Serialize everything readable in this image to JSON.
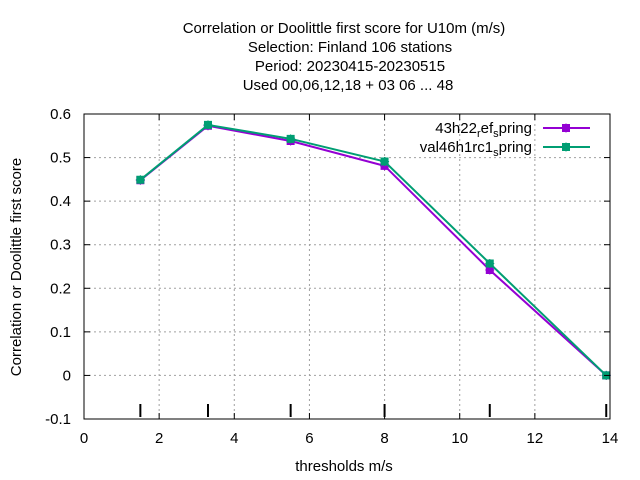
{
  "chart_data": {
    "type": "line",
    "title_lines": [
      "Correlation or Doolittle first score  for U10m (m/s)",
      "Selection: Finland     106 stations",
      "Period: 20230415-20230515",
      "Used  00,06,12,18  + 03 06 ... 48"
    ],
    "xlabel": "thresholds m/s",
    "ylabel": "Correlation or Doolittle first score",
    "xlim": [
      0,
      14
    ],
    "ylim": [
      -0.1,
      0.6
    ],
    "xticks": [
      0,
      2,
      4,
      6,
      8,
      10,
      12,
      14
    ],
    "yticks": [
      -0.1,
      0,
      0.1,
      0.2,
      0.3,
      0.4,
      0.5,
      0.6
    ],
    "xtick_labels": [
      "0",
      "2",
      "4",
      "6",
      "8",
      "10",
      "12",
      "14"
    ],
    "ytick_labels": [
      "-0.1",
      "0",
      "0.1",
      "0.2",
      "0.3",
      "0.4",
      "0.5",
      "0.6"
    ],
    "grid": true,
    "legend_position": "top-right",
    "threshold_marks": [
      1.5,
      3.3,
      5.5,
      8.0,
      10.8,
      13.9
    ],
    "series": [
      {
        "name": "43h22",
        "name_sub": "r",
        "name_mid": "ef",
        "name_sub2": "s",
        "name_end": "pring",
        "color": "#9400d3",
        "x": [
          1.5,
          3.3,
          5.5,
          8.0,
          10.8,
          13.9
        ],
        "y": [
          0.448,
          0.573,
          0.538,
          0.481,
          0.242,
          0.0
        ]
      },
      {
        "name": "val46h1rc1",
        "name_sub": "s",
        "name_end": "pring",
        "color": "#009e73",
        "x": [
          1.5,
          3.3,
          5.5,
          8.0,
          10.8,
          13.9
        ],
        "y": [
          0.449,
          0.575,
          0.543,
          0.491,
          0.257,
          0.0
        ]
      }
    ]
  }
}
